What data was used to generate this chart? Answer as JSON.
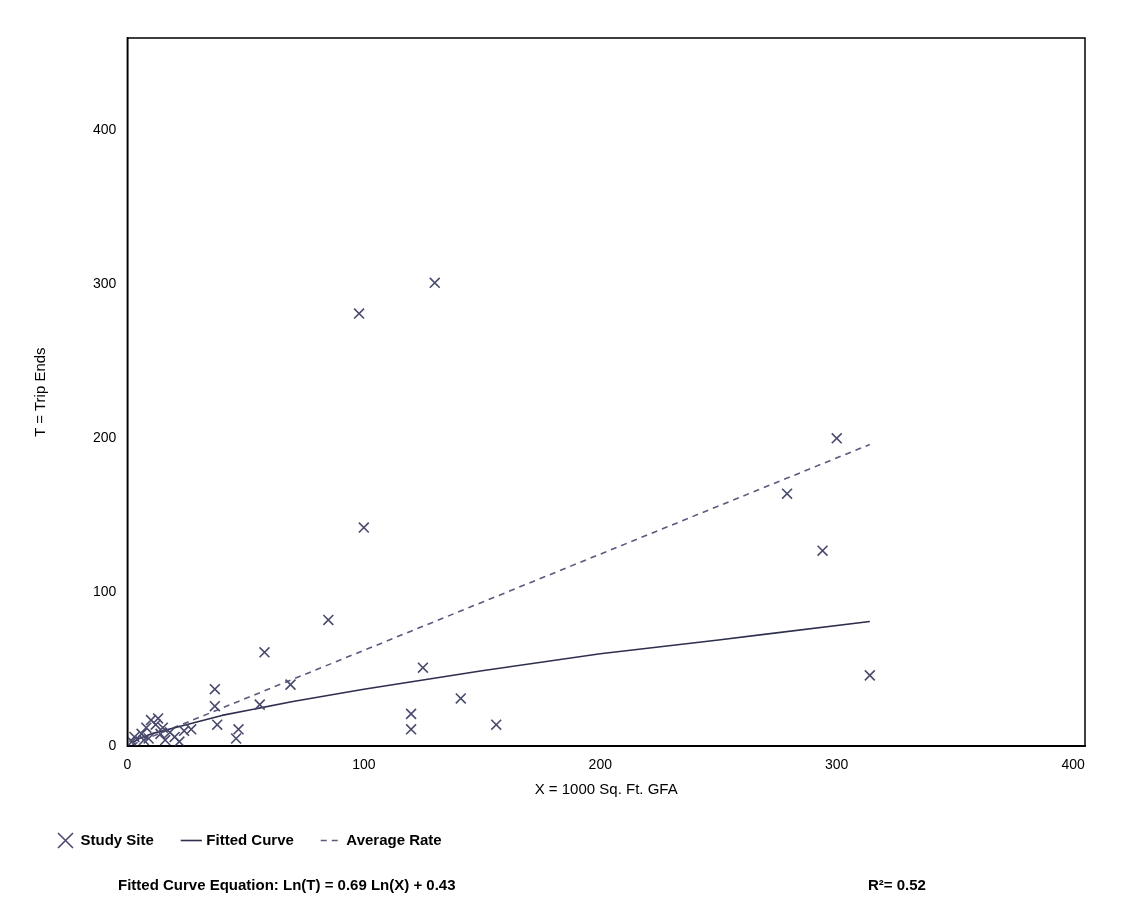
{
  "chart_data": {
    "type": "scatter",
    "xlabel": "X = 1000 Sq. Ft. GFA",
    "ylabel": "T = Trip Ends",
    "xlim": [
      0,
      405
    ],
    "ylim": [
      0,
      460
    ],
    "xticks": [
      0,
      100,
      200,
      300,
      400
    ],
    "yticks": [
      0,
      100,
      200,
      300,
      400
    ],
    "grid": false,
    "legend": "bottom",
    "series": [
      {
        "name": "Study Site",
        "marker": "cross",
        "color": "#4a4a6e",
        "x": [
          130,
          98,
          100,
          85,
          58,
          69,
          56,
          37,
          37,
          38,
          47,
          46,
          27,
          125,
          120,
          120,
          141,
          156,
          314,
          300,
          279,
          294,
          2,
          3,
          6,
          8,
          9,
          10,
          12,
          13,
          14,
          15,
          16,
          18,
          20,
          22,
          24,
          7
        ],
        "values": [
          301,
          281,
          142,
          82,
          61,
          40,
          27,
          37,
          26,
          14,
          11,
          5,
          11,
          51,
          21,
          11,
          31,
          14,
          46,
          200,
          164,
          127,
          3,
          6,
          8,
          12,
          5,
          17,
          14,
          18,
          8,
          12,
          4,
          9,
          6,
          3,
          10,
          4
        ]
      },
      {
        "name": "Fitted Curve",
        "type": "line",
        "line_style": "solid",
        "marker": "none",
        "color": "#2e2e4e",
        "x": [
          2,
          5,
          10,
          20,
          40,
          70,
          100,
          150,
          200,
          250,
          314
        ],
        "values": [
          2,
          5,
          8,
          12,
          20,
          29,
          37,
          49,
          60,
          69,
          81
        ]
      },
      {
        "name": "Average Rate",
        "type": "line",
        "line_style": "dashed",
        "marker": "none",
        "color": "#5a5a7e",
        "x": [
          2,
          314
        ],
        "values": [
          1,
          196
        ]
      }
    ],
    "annotations": [
      "Fitted Curve Equation: Ln(T) = 0.69 Ln(X) + 0.43",
      "R²= 0.52"
    ]
  }
}
